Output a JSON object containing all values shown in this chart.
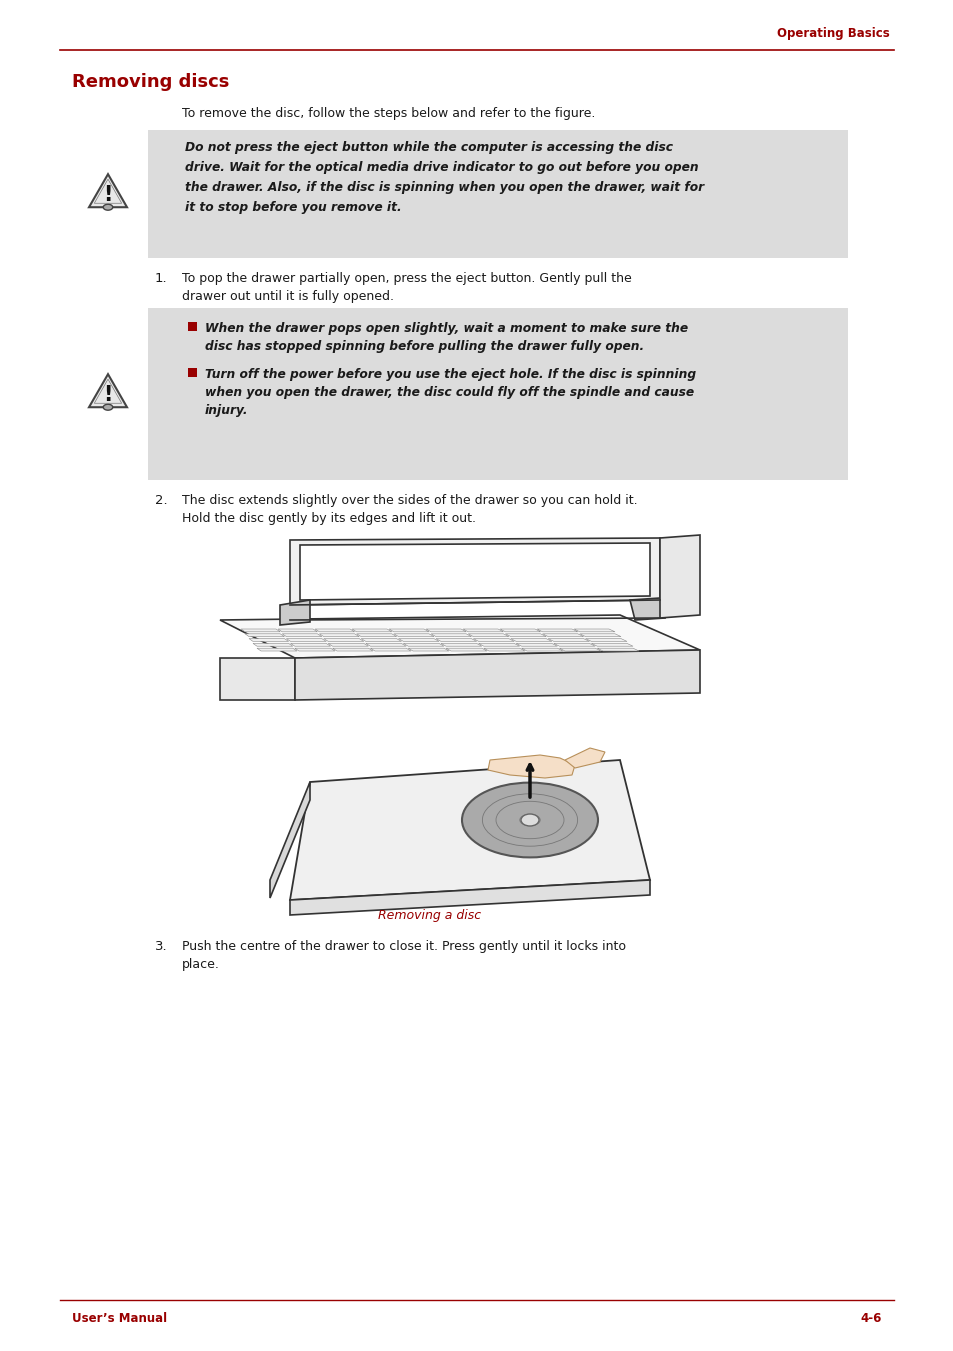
{
  "page_title": "Operating Basics",
  "section_title": "Removing discs",
  "footer_left": "User’s Manual",
  "footer_right": "4-6",
  "red_color": "#990000",
  "dark_color": "#1a1a1a",
  "gray_bg": "#dcdcdc",
  "intro_text": "To remove the disc, follow the steps below and refer to the figure.",
  "warning1_line1": "Do not press the eject button while the computer is accessing the disc",
  "warning1_line2": "drive. Wait for the optical media drive indicator to go out before you open",
  "warning1_line3": "the drawer. Also, if the disc is spinning when you open the drawer, wait for",
  "warning1_line4": "it to stop before you remove it.",
  "step1_line1": "To pop the drawer partially open, press the eject button. Gently pull the",
  "step1_line2": "drawer out until it is fully opened.",
  "w2b1_line1": "When the drawer pops open slightly, wait a moment to make sure the",
  "w2b1_line2": "disc has stopped spinning before pulling the drawer fully open.",
  "w2b2_line1": "Turn off the power before you use the eject hole. If the disc is spinning",
  "w2b2_line2": "when you open the drawer, the disc could fly off the spindle and cause",
  "w2b2_line3": "injury.",
  "step2_line1": "The disc extends slightly over the sides of the drawer so you can hold it.",
  "step2_line2": "Hold the disc gently by its edges and lift it out.",
  "figure_caption": "Removing a disc",
  "step3_line1": "Push the centre of the drawer to close it. Press gently until it locks into",
  "step3_line2": "place."
}
